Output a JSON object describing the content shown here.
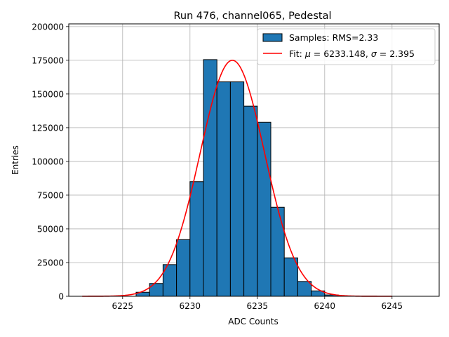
{
  "chart_data": {
    "type": "bar",
    "title": "Run 476, channel065, Pedestal",
    "xlabel": "ADC Counts",
    "ylabel": "Entries",
    "xlim": [
      6221,
      6248.5
    ],
    "ylim": [
      0,
      202000
    ],
    "xticks": [
      6225,
      6230,
      6235,
      6240,
      6245
    ],
    "yticks": [
      0,
      25000,
      50000,
      75000,
      100000,
      125000,
      150000,
      175000,
      200000
    ],
    "grid": true,
    "legend_position": "top-right",
    "colors": {
      "bar_fill": "#1f77b4",
      "bar_edge": "#000000",
      "fit_line": "#ff0000",
      "grid": "#b0b0b0"
    },
    "histogram": {
      "name": "Samples: RMS=2.33",
      "bin_width": 1,
      "bin_left_edges": [
        6226,
        6227,
        6228,
        6229,
        6230,
        6231,
        6232,
        6233,
        6234,
        6235,
        6236,
        6237,
        6238,
        6239,
        6240
      ],
      "counts": [
        3000,
        9500,
        23500,
        42000,
        85000,
        175500,
        159000,
        159000,
        141000,
        129000,
        66000,
        28500,
        11000,
        4000,
        1000
      ]
    },
    "fit": {
      "label_prefix": "Fit: ",
      "mu_symbol": "μ",
      "mu_value": "6233.148",
      "sigma_symbol": "σ",
      "sigma_value": "2.395",
      "mu": 6233.148,
      "sigma": 2.395,
      "amplitude": 175000,
      "x_range": [
        6222,
        6245
      ]
    }
  }
}
